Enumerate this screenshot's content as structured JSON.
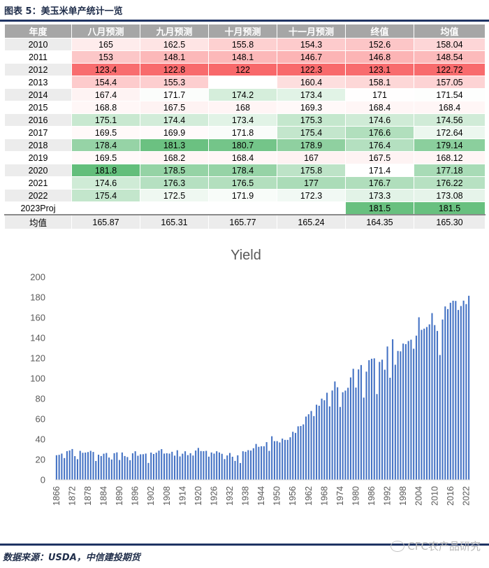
{
  "figure_title": "图表 5：美玉米单产统计一览",
  "table": {
    "headers": [
      "年度",
      "八月预测",
      "九月预测",
      "十月预测",
      "十一月预测",
      "终值",
      "均值"
    ],
    "rows": [
      {
        "year": "2010",
        "cells": [
          "165",
          "162.5",
          "155.8",
          "154.3",
          "152.6",
          "158.04"
        ]
      },
      {
        "year": "2011",
        "cells": [
          "153",
          "148.1",
          "148.1",
          "146.7",
          "146.8",
          "148.54"
        ]
      },
      {
        "year": "2012",
        "cells": [
          "123.4",
          "122.8",
          "122",
          "122.3",
          "123.1",
          "122.72"
        ]
      },
      {
        "year": "2013",
        "cells": [
          "154.4",
          "155.3",
          "",
          "160.4",
          "158.1",
          "157.05"
        ]
      },
      {
        "year": "2014",
        "cells": [
          "167.4",
          "171.7",
          "174.2",
          "173.4",
          "171",
          "171.54"
        ]
      },
      {
        "year": "2015",
        "cells": [
          "168.8",
          "167.5",
          "168",
          "169.3",
          "168.4",
          "168.4"
        ]
      },
      {
        "year": "2016",
        "cells": [
          "175.1",
          "174.4",
          "173.4",
          "175.3",
          "174.6",
          "174.56"
        ]
      },
      {
        "year": "2017",
        "cells": [
          "169.5",
          "169.9",
          "171.8",
          "175.4",
          "176.6",
          "172.64"
        ]
      },
      {
        "year": "2018",
        "cells": [
          "178.4",
          "181.3",
          "180.7",
          "178.9",
          "176.4",
          "179.14"
        ]
      },
      {
        "year": "2019",
        "cells": [
          "169.5",
          "168.2",
          "168.4",
          "167",
          "167.5",
          "168.12"
        ]
      },
      {
        "year": "2020",
        "cells": [
          "181.8",
          "178.5",
          "178.4",
          "175.8",
          "171.4",
          "177.18"
        ]
      },
      {
        "year": "2021",
        "cells": [
          "174.6",
          "176.3",
          "176.5",
          "177",
          "176.7",
          "176.22"
        ]
      },
      {
        "year": "2022",
        "cells": [
          "175.4",
          "172.5",
          "171.9",
          "172.3",
          "173.3",
          "173.08"
        ]
      },
      {
        "year": "2023Proj",
        "cells": [
          "",
          "",
          "",
          "",
          "181.5",
          "181.5"
        ]
      }
    ],
    "average_row": {
      "label": "均值",
      "cells": [
        "165.87",
        "165.31",
        "165.77",
        "165.24",
        "164.35",
        "165.30"
      ]
    }
  },
  "chart_data": {
    "type": "bar",
    "title": "Yield",
    "xlabel": "",
    "ylabel": "",
    "ylim": [
      0,
      200
    ],
    "yticks": [
      0,
      20,
      40,
      60,
      80,
      100,
      120,
      140,
      160,
      180,
      200
    ],
    "xtick_labels": [
      "1866",
      "1872",
      "1878",
      "1884",
      "1890",
      "1896",
      "1902",
      "1908",
      "1914",
      "1920",
      "1926",
      "1932",
      "1938",
      "1944",
      "1950",
      "1956",
      "1962",
      "1968",
      "1974",
      "1980",
      "1986",
      "1992",
      "1998",
      "2004",
      "2010",
      "2016",
      "2022"
    ],
    "series": [
      {
        "name": "Yield",
        "color": "#4472c4"
      }
    ],
    "categories": [
      "1866",
      "1867",
      "1868",
      "1869",
      "1870",
      "1871",
      "1872",
      "1873",
      "1874",
      "1875",
      "1876",
      "1877",
      "1878",
      "1879",
      "1880",
      "1881",
      "1882",
      "1883",
      "1884",
      "1885",
      "1886",
      "1887",
      "1888",
      "1889",
      "1890",
      "1891",
      "1892",
      "1893",
      "1894",
      "1895",
      "1896",
      "1897",
      "1898",
      "1899",
      "1900",
      "1901",
      "1902",
      "1903",
      "1904",
      "1905",
      "1906",
      "1907",
      "1908",
      "1909",
      "1910",
      "1911",
      "1912",
      "1913",
      "1914",
      "1915",
      "1916",
      "1917",
      "1918",
      "1919",
      "1920",
      "1921",
      "1922",
      "1923",
      "1924",
      "1925",
      "1926",
      "1927",
      "1928",
      "1929",
      "1930",
      "1931",
      "1932",
      "1933",
      "1934",
      "1935",
      "1936",
      "1937",
      "1938",
      "1939",
      "1940",
      "1941",
      "1942",
      "1943",
      "1944",
      "1945",
      "1946",
      "1947",
      "1948",
      "1949",
      "1950",
      "1951",
      "1952",
      "1953",
      "1954",
      "1955",
      "1956",
      "1957",
      "1958",
      "1959",
      "1960",
      "1961",
      "1962",
      "1963",
      "1964",
      "1965",
      "1966",
      "1967",
      "1968",
      "1969",
      "1970",
      "1971",
      "1972",
      "1973",
      "1974",
      "1975",
      "1976",
      "1977",
      "1978",
      "1979",
      "1980",
      "1981",
      "1982",
      "1983",
      "1984",
      "1985",
      "1986",
      "1987",
      "1988",
      "1989",
      "1990",
      "1991",
      "1992",
      "1993",
      "1994",
      "1995",
      "1996",
      "1997",
      "1998",
      "1999",
      "2000",
      "2001",
      "2002",
      "2003",
      "2004",
      "2005",
      "2006",
      "2007",
      "2008",
      "2009",
      "2010",
      "2011",
      "2012",
      "2013",
      "2014",
      "2015",
      "2016",
      "2017",
      "2018",
      "2019",
      "2020",
      "2021",
      "2022",
      "2023"
    ],
    "values": [
      24.3,
      24.7,
      25.9,
      21.5,
      28.3,
      29.0,
      30.4,
      23.4,
      20.4,
      28.6,
      26.7,
      26.9,
      27.4,
      28.6,
      27.5,
      18.6,
      24.8,
      23.5,
      25.8,
      26.5,
      22.0,
      20.1,
      26.3,
      27.1,
      19.6,
      27.0,
      23.5,
      22.5,
      19.4,
      26.2,
      28.2,
      23.8,
      25.2,
      25.3,
      25.9,
      16.7,
      26.9,
      25.5,
      26.8,
      28.8,
      30.3,
      25.9,
      26.2,
      25.9,
      27.7,
      23.9,
      29.2,
      23.1,
      25.8,
      28.2,
      24.4,
      26.3,
      24.0,
      28.9,
      31.5,
      28.4,
      28.3,
      28.6,
      22.9,
      27.0,
      25.9,
      28.2,
      27.0,
      25.7,
      20.5,
      24.1,
      26.5,
      22.8,
      18.7,
      24.2,
      16.6,
      28.2,
      27.7,
      29.3,
      28.9,
      31.2,
      35.4,
      32.6,
      33.1,
      33.1,
      37.2,
      28.6,
      43.0,
      38.2,
      38.2,
      36.9,
      40.7,
      39.4,
      39.4,
      42.0,
      47.4,
      46.3,
      52.8,
      53.1,
      54.7,
      62.4,
      64.7,
      67.9,
      62.9,
      74.1,
      73.1,
      80.1,
      78.5,
      85.9,
      72.4,
      88.1,
      97.0,
      91.3,
      71.9,
      86.4,
      88.0,
      90.8,
      101.0,
      109.5,
      91.0,
      108.9,
      113.2,
      81.1,
      106.7,
      118.0,
      119.4,
      119.8,
      84.6,
      116.3,
      118.5,
      108.6,
      131.5,
      100.7,
      138.6,
      113.5,
      127.1,
      126.7,
      134.4,
      133.8,
      136.9,
      138.2,
      129.3,
      142.2,
      160.3,
      147.9,
      149.1,
      150.7,
      153.3,
      164.4,
      152.6,
      146.8,
      123.1,
      158.1,
      171.0,
      168.4,
      174.6,
      176.6,
      176.4,
      167.5,
      171.4,
      176.7,
      173.3,
      181.5
    ]
  },
  "source": "数据来源：USDA，中信建投期货",
  "watermark": "CFC农产品研究",
  "colors": {
    "header_bg": "#a6a6a6",
    "rule": "#1f3464",
    "bar": "#4472c4",
    "low": "#f8696b",
    "mid": "#ffffff",
    "high": "#63be7b"
  }
}
